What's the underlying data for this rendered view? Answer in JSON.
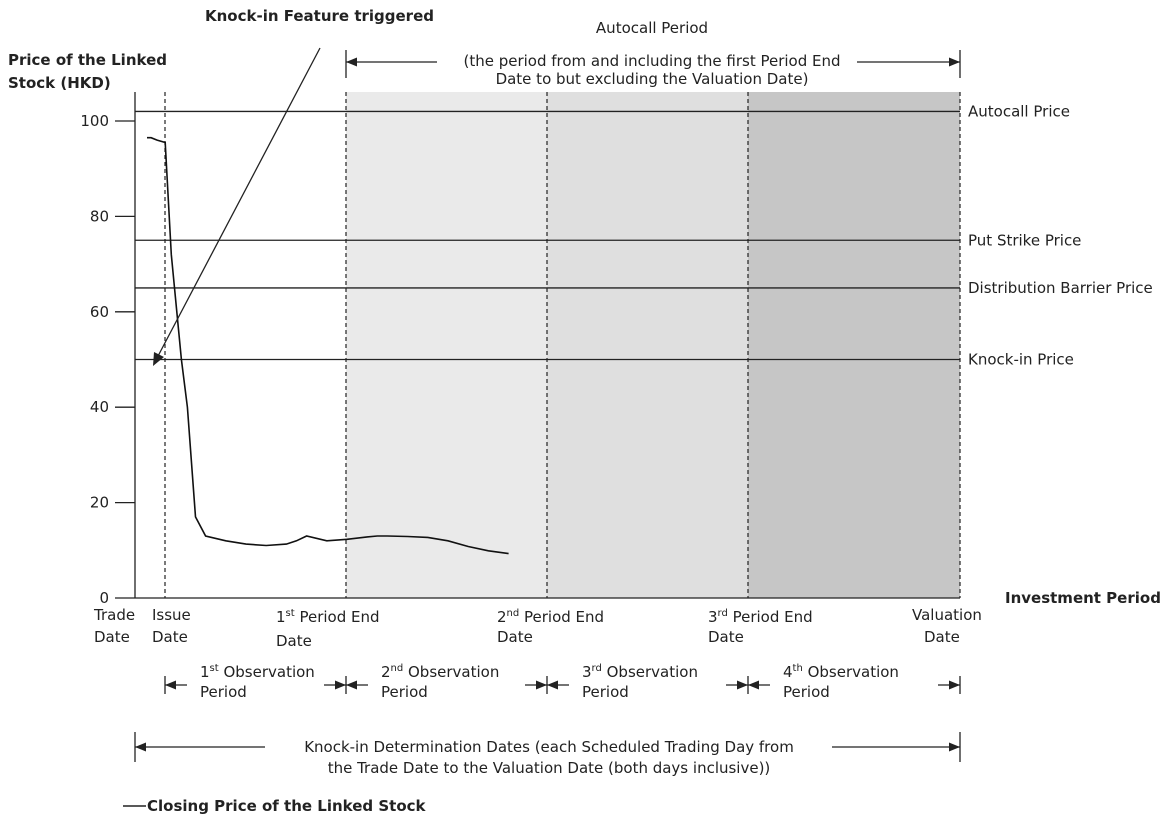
{
  "chart_data": {
    "type": "line",
    "ylabel": [
      "Price of the Linked",
      "Stock (HKD)"
    ],
    "xlabel": "Investment Period",
    "y_ticks": [
      0,
      20,
      40,
      60,
      80,
      100
    ],
    "ylim": [
      0,
      100
    ],
    "series": [
      {
        "name": "Closing Price of the Linked Stock",
        "x": [
          0.1,
          0.3,
          0.6,
          1.0,
          1.3,
          1.8,
          2.1,
          2.5,
          3.0,
          4.0,
          5.0,
          6.0,
          7.0,
          7.5,
          8.0,
          9.0,
          10.0,
          11.0,
          11.5,
          12.0,
          13.0,
          14.0,
          15.0,
          16.0,
          17.0,
          18.0
        ],
        "values": [
          96.5,
          96.5,
          96.0,
          95.5,
          72.0,
          50.0,
          40.0,
          17.0,
          13.0,
          12.0,
          11.3,
          11.0,
          11.3,
          12.0,
          13.0,
          12.0,
          12.3,
          12.8,
          13.0,
          13.0,
          12.9,
          12.7,
          12.0,
          10.8,
          9.9,
          9.3
        ]
      }
    ],
    "horizontal_lines": [
      {
        "label": "Autocall Price",
        "value": 102
      },
      {
        "label": "Put Strike Price",
        "value": 75
      },
      {
        "label": "Distribution Barrier Price",
        "value": 65
      },
      {
        "label": "Knock-in Price",
        "value": 50
      }
    ],
    "dates": [
      {
        "key": "trade",
        "line1": "Trade",
        "line2": "Date"
      },
      {
        "key": "issue",
        "line1": "Issue",
        "line2": "Date"
      },
      {
        "key": "pe1",
        "ord": "1",
        "sup": "st",
        "line1rest": " Period End",
        "line2": "Date"
      },
      {
        "key": "pe2",
        "ord": "2",
        "sup": "nd",
        "line1rest": " Period End",
        "line2": "Date"
      },
      {
        "key": "pe3",
        "ord": "3",
        "sup": "rd",
        "line1rest": " Period End",
        "line2": "Date"
      },
      {
        "key": "val",
        "line1": "Valuation",
        "line2": "Date"
      }
    ],
    "observation_periods": [
      {
        "ord": "1",
        "sup": "st",
        "rest": " Observation",
        "line2": "Period"
      },
      {
        "ord": "2",
        "sup": "nd",
        "rest": " Observation",
        "line2": "Period"
      },
      {
        "ord": "3",
        "sup": "rd",
        "rest": " Observation",
        "line2": "Period"
      },
      {
        "ord": "4",
        "sup": "th",
        "rest": " Observation",
        "line2": "Period"
      }
    ],
    "annotations": {
      "knock_in": "Knock-in Feature triggered",
      "autocall_title": "Autocall Period",
      "autocall_note": [
        "(the period from and including the first Period End",
        "Date to but excluding the Valuation Date)"
      ],
      "determination": [
        "Knock-in Determination Dates (each Scheduled Trading Day from",
        "the Trade Date to the Valuation Date (both days inclusive))"
      ]
    },
    "legend": "Closing Price of the Linked Stock",
    "shading_colors": [
      "#eaeaea",
      "#dfdfdf",
      "#c6c6c6"
    ]
  }
}
